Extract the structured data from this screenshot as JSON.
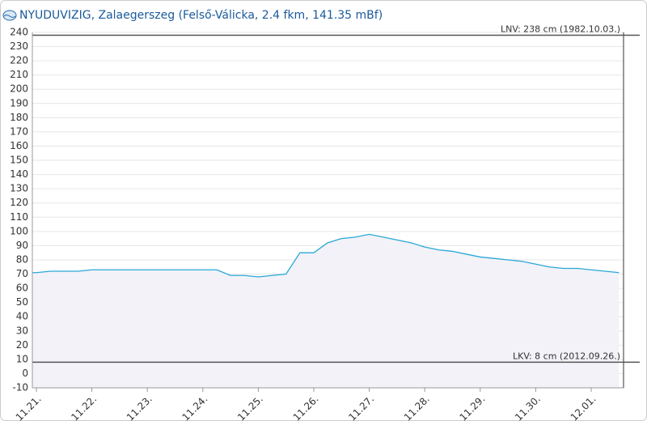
{
  "chart_data": {
    "type": "line",
    "title": "NYUDUVIZIG, Zalaegerszeg (Felső-Válicka, 2.4 fkm, 141.35 mBf)",
    "categories": [
      "11.21.",
      null,
      null,
      null,
      "11.22.",
      null,
      null,
      null,
      "11.23.",
      null,
      null,
      null,
      "11.24.",
      null,
      null,
      null,
      "11.25.",
      null,
      null,
      null,
      "11.26.",
      null,
      null,
      null,
      "11.27.",
      null,
      null,
      null,
      "11.28.",
      null,
      null,
      null,
      "11.29.",
      null,
      null,
      null,
      "11.30.",
      null,
      null,
      null,
      "12.01.",
      null,
      null
    ],
    "series": [
      {
        "color": "#29a8d6",
        "values": [
          71,
          72,
          72,
          72,
          73,
          73,
          73,
          73,
          73,
          73,
          73,
          73,
          73,
          73,
          69,
          69,
          68,
          69,
          70,
          85,
          85,
          92,
          95,
          96,
          98,
          96,
          94,
          92,
          89,
          87,
          86,
          84,
          82,
          81,
          80,
          79,
          77,
          75,
          74,
          74,
          73,
          72,
          71
        ]
      }
    ],
    "ylim": [
      -10,
      240
    ],
    "yticks": [
      -10,
      0,
      10,
      20,
      30,
      40,
      50,
      60,
      70,
      80,
      90,
      100,
      110,
      120,
      130,
      140,
      150,
      160,
      170,
      180,
      190,
      200,
      210,
      220,
      230,
      240
    ],
    "grid": true,
    "reference_lines": [
      {
        "label": "LNV: 238 cm (1982.10.03.)",
        "value": 238
      },
      {
        "label": "LKV: 8 cm (2012.09.26.)",
        "value": 8
      }
    ]
  }
}
